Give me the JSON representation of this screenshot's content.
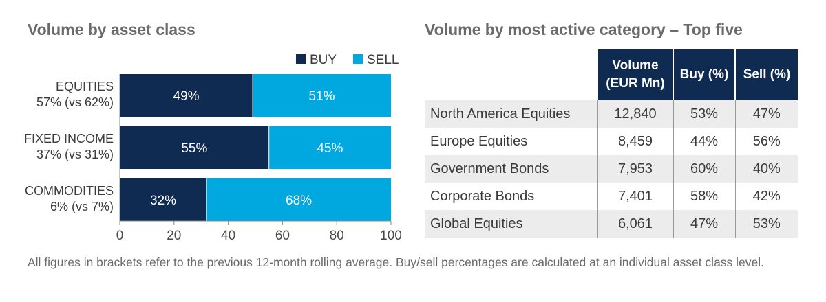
{
  "left_title": "Volume by asset class",
  "right_title": "Volume by most active category – Top five",
  "chart_data": {
    "type": "bar",
    "orientation": "horizontal",
    "stacked": true,
    "categories": [
      [
        "EQUITIES",
        "57% (vs 62%)"
      ],
      [
        "FIXED INCOME",
        "37% (vs 31%)"
      ],
      [
        "COMMODITIES",
        "6% (vs 7%)"
      ]
    ],
    "series": [
      {
        "name": "BUY",
        "color": "#0f2b52",
        "values": [
          49,
          55,
          32
        ],
        "labels": [
          "49%",
          "55%",
          "32%"
        ]
      },
      {
        "name": "SELL",
        "color": "#00a8e0",
        "values": [
          51,
          45,
          68
        ],
        "labels": [
          "51%",
          "45%",
          "68%"
        ]
      }
    ],
    "xlim": [
      0,
      100
    ],
    "xticks": [
      "0",
      "20",
      "40",
      "60",
      "80",
      "100"
    ],
    "legend": "top-right",
    "grid": false
  },
  "table": {
    "headers": [
      "",
      "Volume\n(EUR Mn)",
      "Buy (%)",
      "Sell (%)"
    ],
    "rows": [
      [
        "North America Equities",
        "12,840",
        "53%",
        "47%"
      ],
      [
        "Europe Equities",
        "8,459",
        "44%",
        "56%"
      ],
      [
        "Government Bonds",
        "7,953",
        "60%",
        "40%"
      ],
      [
        "Corporate Bonds",
        "7,401",
        "58%",
        "42%"
      ],
      [
        "Global Equities",
        "6,061",
        "47%",
        "53%"
      ]
    ]
  },
  "footnote": "All figures in brackets refer to the previous 12-month rolling average. Buy/sell percentages are calculated at an individual asset class level."
}
